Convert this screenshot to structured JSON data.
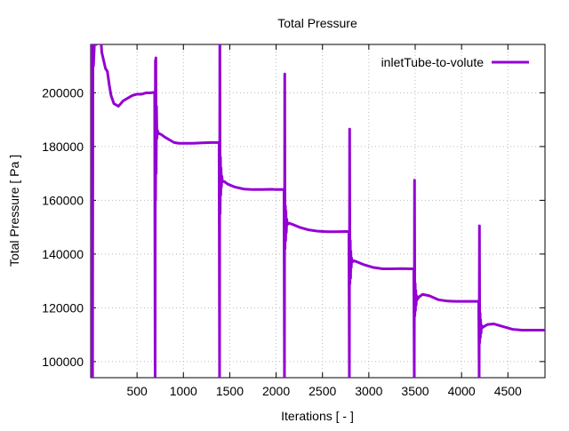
{
  "chart_data": {
    "type": "line",
    "title": "Total Pressure",
    "xlabel": "Iterations [ - ]",
    "ylabel": "Total Pressure [ Pa ]",
    "xlim": [
      0,
      4900
    ],
    "ylim": [
      94000,
      218000
    ],
    "x_ticks": [
      500,
      1000,
      1500,
      2000,
      2500,
      3000,
      3500,
      4000,
      4500
    ],
    "y_ticks": [
      100000,
      120000,
      140000,
      160000,
      180000,
      200000
    ],
    "grid": true,
    "legend_position": "top-right",
    "line_color": "#9400d3",
    "series": [
      {
        "name": "inletTube-to-volute",
        "x": [
          0,
          10,
          15,
          20,
          25,
          30,
          40,
          60,
          80,
          100,
          120,
          140,
          160,
          180,
          200,
          220,
          250,
          300,
          350,
          400,
          450,
          500,
          550,
          600,
          650,
          690,
          695,
          698,
          700,
          703,
          706,
          710,
          715,
          720,
          730,
          760,
          800,
          850,
          900,
          950,
          1000,
          1100,
          1200,
          1300,
          1385,
          1390,
          1393,
          1396,
          1400,
          1403,
          1406,
          1410,
          1415,
          1420,
          1440,
          1480,
          1550,
          1650,
          1750,
          1850,
          1950,
          2000,
          2085,
          2090,
          2093,
          2096,
          2100,
          2103,
          2106,
          2110,
          2115,
          2120,
          2140,
          2180,
          2250,
          2350,
          2450,
          2550,
          2650,
          2750,
          2785,
          2790,
          2793,
          2796,
          2800,
          2803,
          2806,
          2810,
          2815,
          2820,
          2840,
          2880,
          2950,
          3050,
          3150,
          3250,
          3350,
          3450,
          3485,
          3490,
          3493,
          3496,
          3500,
          3503,
          3506,
          3510,
          3515,
          3520,
          3540,
          3580,
          3650,
          3750,
          3850,
          3950,
          4050,
          4150,
          4185,
          4190,
          4193,
          4196,
          4200,
          4203,
          4206,
          4210,
          4215,
          4220,
          4240,
          4280,
          4350,
          4450,
          4550,
          4650,
          4750,
          4850,
          4900
        ],
        "values": [
          94000,
          94000,
          230000,
          94000,
          230000,
          210000,
          218000,
          218000,
          225000,
          225000,
          215000,
          212000,
          209000,
          208000,
          203000,
          199000,
          196000,
          195000,
          197000,
          198000,
          199000,
          199500,
          199500,
          200000,
          200000,
          200200,
          94000,
          212000,
          160000,
          213000,
          170000,
          195000,
          183000,
          186000,
          185000,
          184500,
          183500,
          182500,
          181500,
          181200,
          181200,
          181200,
          181400,
          181500,
          181500,
          94000,
          230000,
          155000,
          176000,
          162000,
          172000,
          165000,
          169000,
          167000,
          167000,
          166000,
          165000,
          164200,
          164000,
          164000,
          164100,
          164000,
          164000,
          94000,
          207000,
          142000,
          158000,
          145000,
          156000,
          148000,
          153000,
          151000,
          151500,
          151000,
          150000,
          149000,
          148500,
          148300,
          148300,
          148400,
          148300,
          94000,
          186500,
          129000,
          145000,
          131000,
          141000,
          135000,
          138500,
          137000,
          137500,
          137000,
          136000,
          135000,
          134500,
          134500,
          134600,
          134500,
          134500,
          94000,
          167500,
          117000,
          129000,
          119000,
          126500,
          121000,
          124500,
          123000,
          124000,
          125000,
          124500,
          123000,
          122500,
          122400,
          122400,
          122400,
          122400,
          94000,
          150500,
          107000,
          118000,
          109000,
          115500,
          110500,
          113500,
          112500,
          113000,
          113800,
          114000,
          113000,
          112000,
          111700,
          111700,
          111700,
          111700
        ]
      }
    ]
  }
}
